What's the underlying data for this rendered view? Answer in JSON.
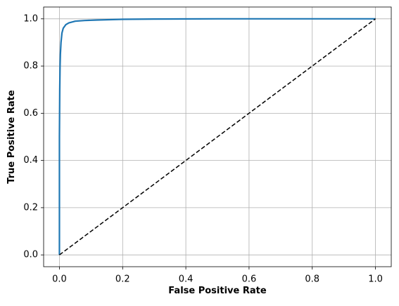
{
  "chart_data": {
    "type": "line",
    "xlabel": "False Positive Rate",
    "ylabel": "True Positive Rate",
    "xlim": [
      -0.05,
      1.05
    ],
    "ylim": [
      -0.05,
      1.05
    ],
    "xticks": [
      {
        "value": 0,
        "label": "0.0"
      },
      0.2,
      0.4,
      0.6,
      0.8,
      {
        "value": 1,
        "label": "1.0"
      }
    ],
    "yticks": [
      {
        "value": 0,
        "label": "0.0"
      },
      0.2,
      0.4,
      0.6,
      0.8,
      {
        "value": 1,
        "label": "1.0"
      }
    ],
    "grid": true,
    "series": [
      {
        "color": "#1f77b4",
        "dashed": false,
        "x": [
          0,
          0,
          0.001,
          0.002,
          0.003,
          0.005,
          0.008,
          0.012,
          0.02,
          0.03,
          0.05,
          0.08,
          0.12,
          0.2,
          0.3,
          0.5,
          1
        ],
        "values": [
          0,
          0.5,
          0.7,
          0.8,
          0.85,
          0.9,
          0.94,
          0.96,
          0.975,
          0.983,
          0.99,
          0.993,
          0.995,
          0.998,
          0.999,
          1,
          1
        ]
      },
      {
        "color": "#000000",
        "dashed": true,
        "x": [
          0,
          1
        ],
        "values": [
          0,
          1
        ]
      }
    ]
  }
}
